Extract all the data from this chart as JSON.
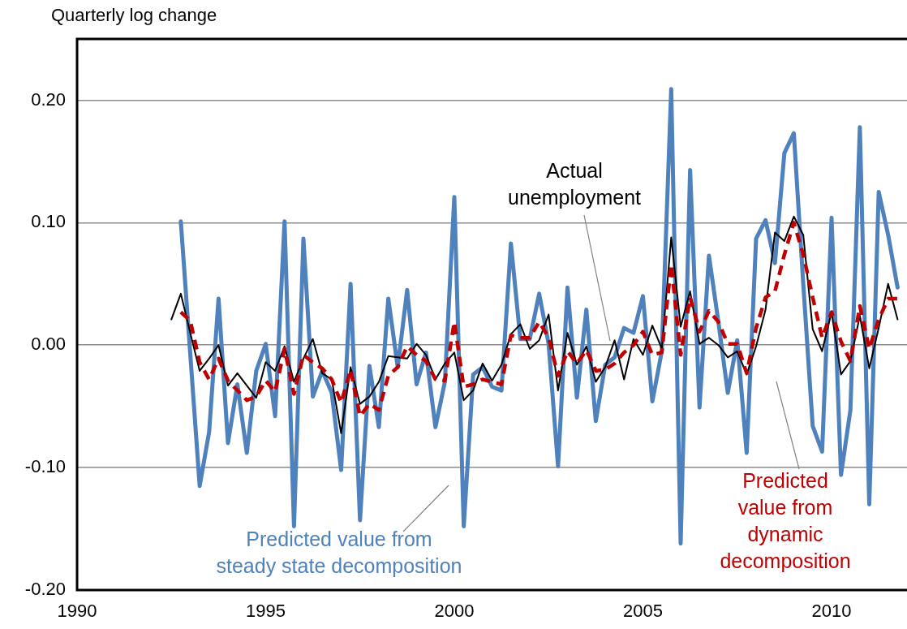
{
  "chart_data": {
    "type": "line",
    "ylabel": "Quarterly log change",
    "x": [
      1992.5,
      1992.75,
      1993,
      1993.25,
      1993.5,
      1993.75,
      1994,
      1994.25,
      1994.5,
      1994.75,
      1995,
      1995.25,
      1995.5,
      1995.75,
      1996,
      1996.25,
      1996.5,
      1996.75,
      1997,
      1997.25,
      1997.5,
      1997.75,
      1998,
      1998.25,
      1998.5,
      1998.75,
      1999,
      1999.25,
      1999.5,
      1999.75,
      2000,
      2000.25,
      2000.5,
      2000.75,
      2001,
      2001.25,
      2001.5,
      2001.75,
      2002,
      2002.25,
      2002.5,
      2002.75,
      2003,
      2003.25,
      2003.5,
      2003.75,
      2004,
      2004.25,
      2004.5,
      2004.75,
      2005,
      2005.25,
      2005.5,
      2005.75,
      2006,
      2006.25,
      2006.5,
      2006.75,
      2007,
      2007.25,
      2007.5,
      2007.75,
      2008,
      2008.25,
      2008.5,
      2008.75,
      2009,
      2009.25,
      2009.5,
      2009.75,
      2010,
      2010.25,
      2010.5,
      2010.75,
      2011,
      2011.25,
      2011.5,
      2011.75
    ],
    "series": [
      {
        "name": "Actual unemployment",
        "color": "#000000",
        "line_style": "solid",
        "values": [
          0.021,
          0.042,
          0.01,
          -0.021,
          -0.011,
          0.0,
          -0.033,
          -0.023,
          -0.033,
          -0.043,
          -0.014,
          -0.021,
          -0.001,
          -0.03,
          -0.011,
          0.005,
          -0.023,
          -0.028,
          -0.072,
          -0.018,
          -0.048,
          -0.042,
          -0.03,
          -0.009,
          -0.01,
          -0.011,
          0.001,
          -0.008,
          -0.028,
          -0.015,
          -0.006,
          -0.045,
          -0.037,
          -0.015,
          -0.029,
          -0.016,
          0.009,
          0.017,
          -0.003,
          0.004,
          0.025,
          -0.037,
          0.01,
          -0.016,
          -0.001,
          -0.03,
          -0.018,
          0.004,
          -0.028,
          0.005,
          -0.008,
          0.016,
          -0.003,
          0.088,
          0.015,
          0.044,
          0.001,
          0.006,
          0.0,
          -0.01,
          -0.005,
          -0.024,
          -0.001,
          0.029,
          0.092,
          0.085,
          0.105,
          0.09,
          0.013,
          -0.005,
          0.027,
          -0.024,
          -0.013,
          0.024,
          -0.019,
          0.014,
          0.05,
          0.021
        ]
      },
      {
        "name": "Predicted value from steady state decomposition",
        "color": "#4f81bd",
        "line_style": "solid",
        "values": [
          null,
          0.101,
          -0.007,
          -0.115,
          -0.071,
          0.038,
          -0.08,
          -0.032,
          -0.088,
          -0.021,
          0.001,
          -0.058,
          0.101,
          -0.148,
          0.087,
          -0.042,
          -0.021,
          -0.039,
          -0.102,
          0.05,
          -0.143,
          -0.017,
          -0.067,
          0.038,
          -0.018,
          0.045,
          -0.032,
          -0.006,
          -0.067,
          -0.03,
          0.121,
          -0.148,
          -0.024,
          -0.018,
          -0.034,
          -0.037,
          0.083,
          0.005,
          0.005,
          0.042,
          0.001,
          -0.099,
          0.047,
          -0.043,
          0.029,
          -0.062,
          -0.016,
          -0.01,
          0.014,
          0.01,
          0.04,
          -0.046,
          -0.005,
          0.209,
          -0.162,
          0.143,
          -0.051,
          0.073,
          0.019,
          -0.039,
          0.004,
          -0.088,
          0.087,
          0.102,
          0.067,
          0.157,
          0.173,
          0.05,
          -0.066,
          -0.087,
          0.104,
          -0.106,
          -0.053,
          0.178,
          -0.13,
          0.125,
          0.09,
          0.047
        ]
      },
      {
        "name": "Predicted value from dynamic decomposition",
        "color": "#c00000",
        "line_style": "dashed",
        "values": [
          null,
          0.027,
          0.02,
          -0.014,
          -0.028,
          -0.011,
          -0.029,
          -0.037,
          -0.045,
          -0.042,
          -0.029,
          -0.038,
          -0.003,
          -0.04,
          -0.008,
          -0.014,
          -0.019,
          -0.028,
          -0.047,
          -0.02,
          -0.058,
          -0.048,
          -0.053,
          -0.025,
          -0.018,
          -0.001,
          -0.008,
          -0.013,
          -0.028,
          -0.029,
          0.019,
          -0.034,
          -0.032,
          -0.028,
          -0.03,
          -0.032,
          0.008,
          0.006,
          0.006,
          0.019,
          0.006,
          -0.025,
          -0.005,
          -0.015,
          -0.004,
          -0.021,
          -0.02,
          -0.015,
          -0.006,
          0.0,
          0.011,
          -0.008,
          -0.006,
          0.066,
          -0.008,
          0.039,
          0.011,
          0.028,
          0.019,
          0.001,
          0.001,
          -0.023,
          0.014,
          0.039,
          0.044,
          0.074,
          0.1,
          0.074,
          0.039,
          0.006,
          0.027,
          0.003,
          -0.013,
          0.032,
          -0.003,
          0.021,
          0.038,
          0.038
        ]
      }
    ],
    "xlim": [
      1990,
      2012
    ],
    "xticks": [
      1990,
      1995,
      2000,
      2005,
      2010
    ],
    "ylim": [
      -0.2,
      0.25
    ],
    "yticks": [
      {
        "value": -0.2,
        "label": "-0.20"
      },
      {
        "value": -0.1,
        "label": "-0.10"
      },
      {
        "value": 0,
        "label": "0.00"
      },
      {
        "value": 0.1,
        "label": "0.10"
      },
      {
        "value": 0.2,
        "label": "0.20"
      }
    ],
    "grid": "y",
    "legend": false,
    "marker": "none"
  }
}
